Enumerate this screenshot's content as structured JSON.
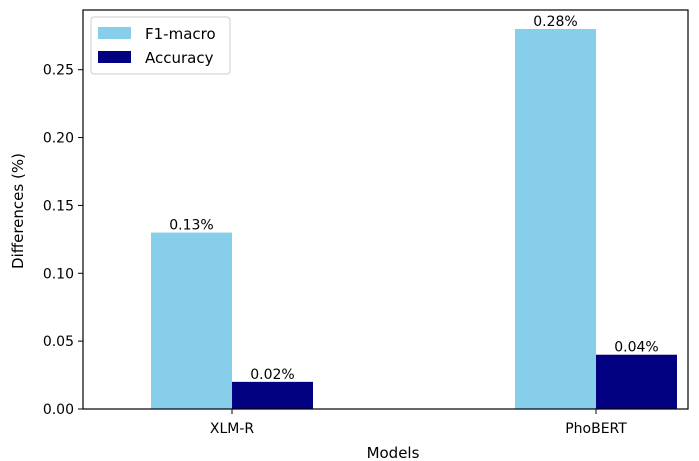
{
  "chart_data": {
    "type": "bar",
    "categories": [
      "XLM-R",
      "PhoBERT"
    ],
    "series": [
      {
        "name": "F1-macro",
        "values": [
          0.13,
          0.28
        ],
        "color": "#87CEEB",
        "labels": [
          "0.13%",
          "0.28%"
        ]
      },
      {
        "name": "Accuracy",
        "values": [
          0.02,
          0.04
        ],
        "color": "#000080",
        "labels": [
          "0.02%",
          "0.04%"
        ]
      }
    ],
    "xlabel": "Models",
    "ylabel": "Differences (%)",
    "ylim": [
      0,
      0.294
    ],
    "yticks": [
      "0.00",
      "0.05",
      "0.10",
      "0.15",
      "0.20",
      "0.25"
    ],
    "grid": false,
    "legend_position": "top-left"
  }
}
